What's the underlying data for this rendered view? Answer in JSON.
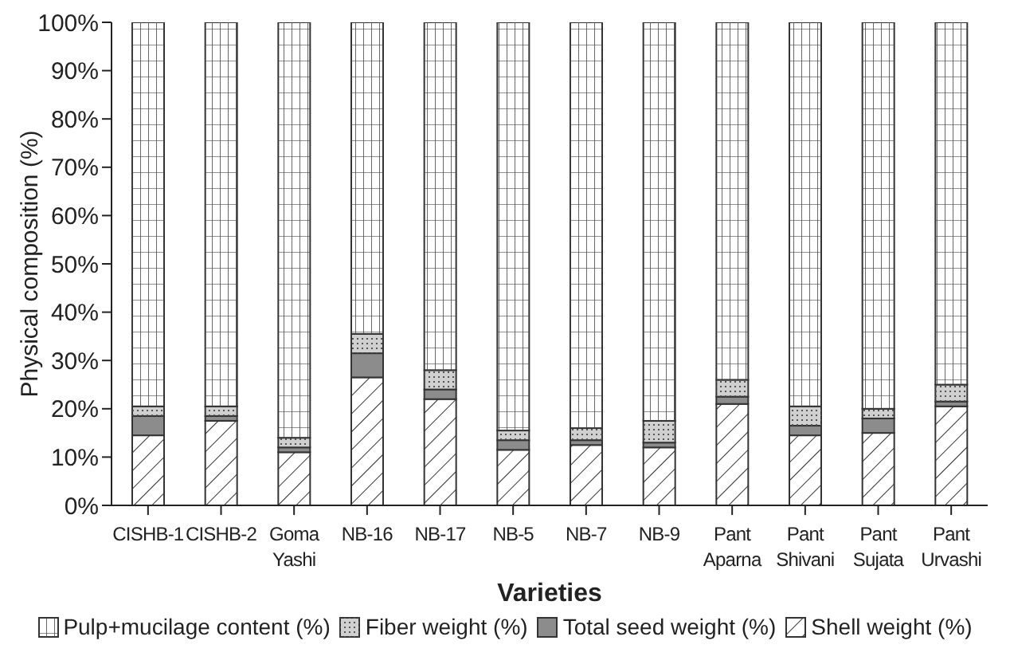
{
  "chart_data": {
    "type": "bar",
    "stacked": true,
    "xlabel": "Varieties",
    "ylabel": "Physical composition (%)",
    "categories": [
      "CISHB-1",
      "CISHB-2",
      "Goma Yashi",
      "NB-16",
      "NB-17",
      "NB-5",
      "NB-7",
      "NB-9",
      "Pant Aparna",
      "Pant Shivani",
      "Pant Sujata",
      "Pant Urvashi"
    ],
    "series": [
      {
        "name": "Shell weight (%)",
        "color": "#ffffff",
        "values": [
          14.5,
          17.5,
          11,
          26.5,
          22,
          11.5,
          12.5,
          12,
          21,
          14.5,
          15,
          20.5
        ]
      },
      {
        "name": "Total seed weight (%)",
        "color": "#8c8c8c",
        "values": [
          4,
          1,
          1,
          5,
          2,
          2,
          1,
          1,
          1.5,
          2,
          3,
          1
        ]
      },
      {
        "name": "Fiber weight (%)",
        "color": "#d0d0d0",
        "values": [
          2,
          2,
          2,
          4,
          4,
          2,
          2.5,
          4.5,
          3.5,
          4,
          2,
          3.5
        ]
      },
      {
        "name": "Pulp+mucilage content (%)",
        "color": "#ffffff",
        "values": [
          79.5,
          79.5,
          86,
          64.5,
          72,
          84.5,
          84,
          82.5,
          74,
          79.5,
          80,
          75
        ]
      }
    ],
    "ylim": [
      0,
      100
    ],
    "yticks": [
      {
        "value": 0,
        "label": "0%"
      },
      {
        "value": 10,
        "label": "10%"
      },
      {
        "value": 20,
        "label": "20%"
      },
      {
        "value": 30,
        "label": "30%"
      },
      {
        "value": 40,
        "label": "40%"
      },
      {
        "value": 50,
        "label": "50%"
      },
      {
        "value": 60,
        "label": "60%"
      },
      {
        "value": 70,
        "label": "70%"
      },
      {
        "value": 80,
        "label": "80%"
      },
      {
        "value": 90,
        "label": "90%"
      },
      {
        "value": 100,
        "label": "100%"
      }
    ],
    "grid": false,
    "legend": "bottom"
  }
}
